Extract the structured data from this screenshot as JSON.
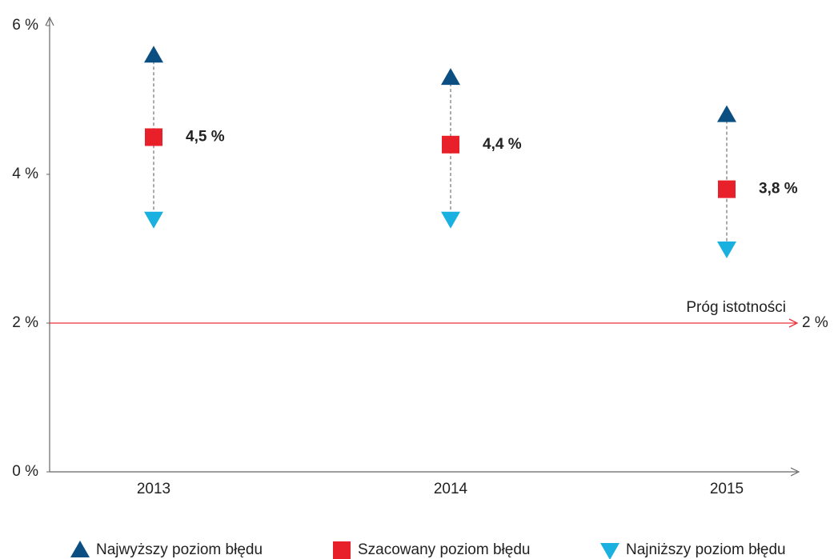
{
  "chart_data": {
    "type": "range",
    "categories": [
      "2013",
      "2014",
      "2015"
    ],
    "series": [
      {
        "name": "Najwyższy poziom błędu",
        "color": "#0b4f82",
        "marker": "triangle-up",
        "values": [
          5.6,
          5.3,
          4.8
        ]
      },
      {
        "name": "Szacowany poziom błędu",
        "color": "#e8202a",
        "marker": "square",
        "values": [
          4.5,
          4.4,
          3.8
        ],
        "value_labels": [
          "4,5 %",
          "4,4 %",
          "3,8 %"
        ]
      },
      {
        "name": "Najniższy poziom błędu",
        "color": "#1ab0e0",
        "marker": "triangle-down",
        "values": [
          3.4,
          3.4,
          3.0
        ]
      }
    ],
    "ylim": [
      0,
      6
    ],
    "yticks": [
      {
        "value": 0,
        "label": "0 %"
      },
      {
        "value": 2,
        "label": "2 %"
      },
      {
        "value": 4,
        "label": "4 %"
      },
      {
        "value": 6,
        "label": "6 %"
      }
    ],
    "threshold": {
      "label": "Próg istotności",
      "value": 2,
      "value_label": "2 %",
      "color": "#e8303a"
    },
    "legend": "bottom"
  }
}
